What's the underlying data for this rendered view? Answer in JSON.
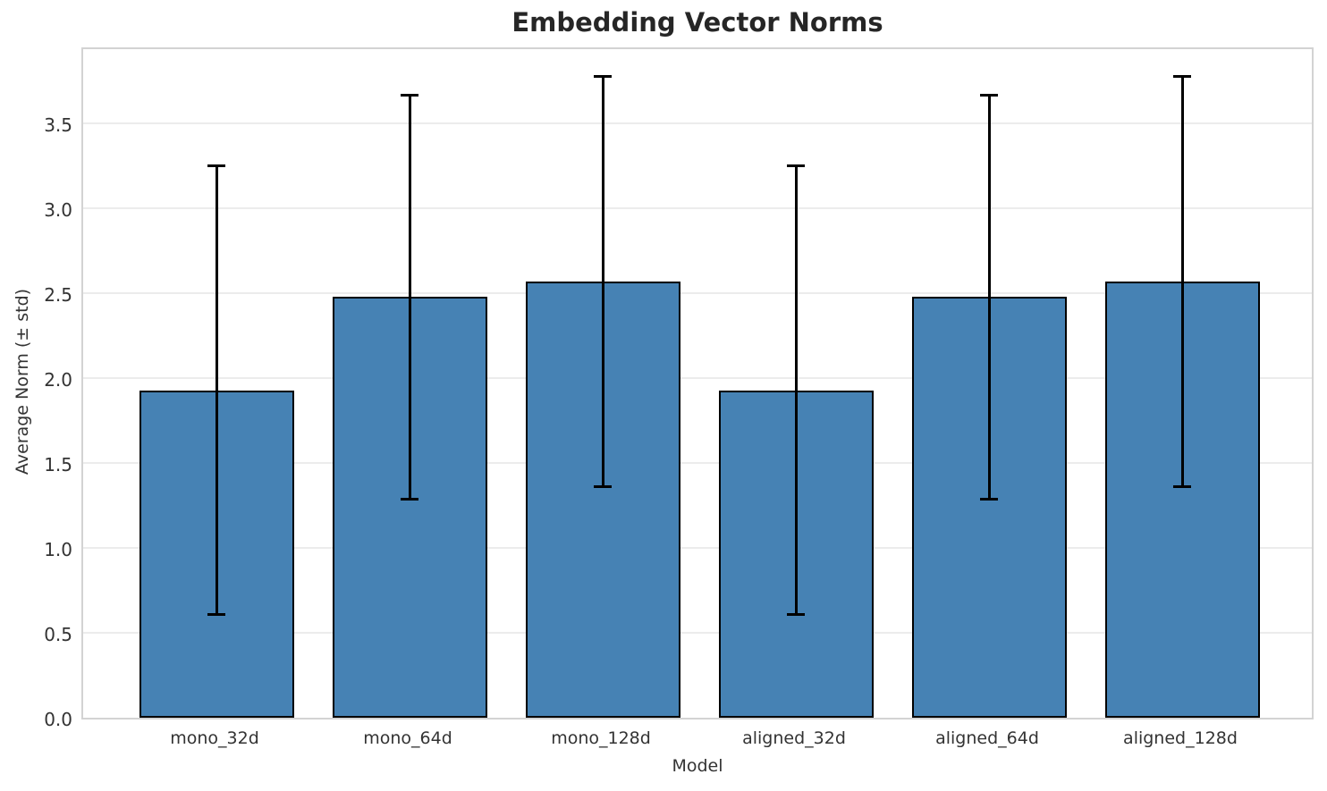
{
  "chart_data": {
    "type": "bar",
    "title": "Embedding Vector Norms",
    "xlabel": "Model",
    "ylabel": "Average Norm (± std)",
    "categories": [
      "mono_32d",
      "mono_64d",
      "mono_128d",
      "aligned_32d",
      "aligned_64d",
      "aligned_128d"
    ],
    "values": [
      1.93,
      2.48,
      2.57,
      1.93,
      2.48,
      2.57
    ],
    "errors": [
      1.32,
      1.19,
      1.21,
      1.32,
      1.19,
      1.21
    ],
    "yticks": [
      0.0,
      0.5,
      1.0,
      1.5,
      2.0,
      2.5,
      3.0,
      3.5
    ],
    "ylim": [
      0,
      3.96
    ],
    "grid": "horizontal",
    "legend": null,
    "error_bar_style": "plus-minus-std-with-caps",
    "colors": {
      "bar_fill": "#4682b4",
      "bar_edge": "#000000",
      "error_bar": "#000000",
      "grid_line": "#ececec",
      "plot_border": "#d3d3d3",
      "title_text": "#262626",
      "tick_text": "#333333"
    }
  }
}
